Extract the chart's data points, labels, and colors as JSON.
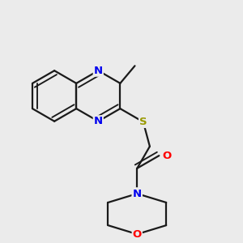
{
  "bg_color": "#ebebeb",
  "bond_color": "#1a1a1a",
  "bond_width": 1.6,
  "atom_colors": {
    "N": "#0000ee",
    "S": "#999900",
    "O": "#ff0000",
    "C": "#1a1a1a"
  },
  "font_size": 9.5,
  "fig_size": [
    3.0,
    3.0
  ],
  "dpi": 100
}
